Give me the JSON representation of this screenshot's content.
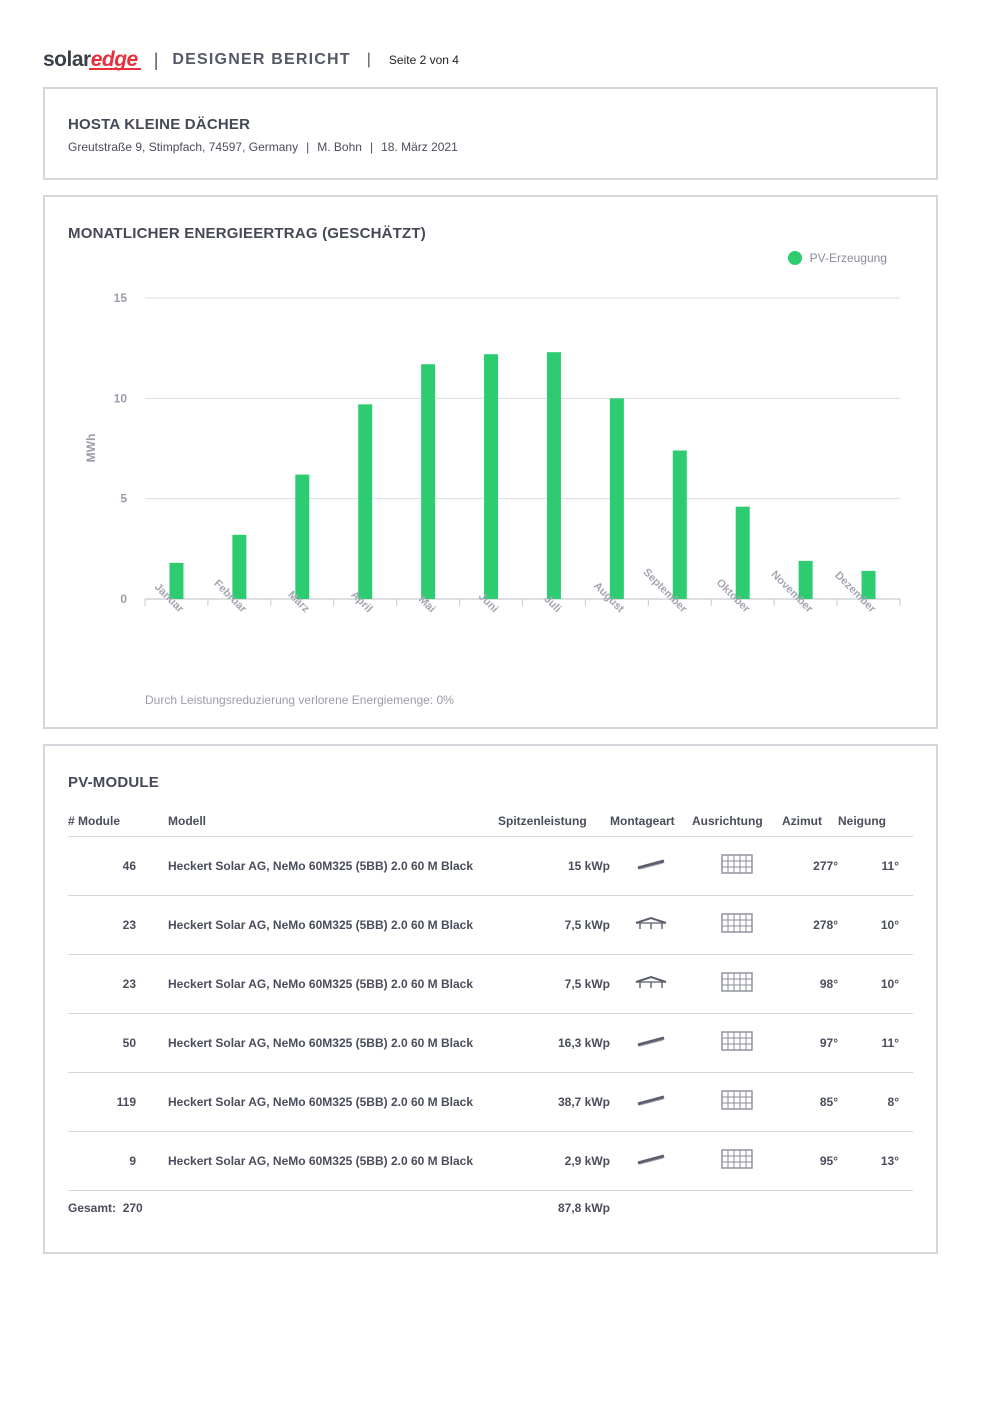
{
  "header": {
    "logo_solar": "solar",
    "logo_edge": "edge",
    "report_title": "DESIGNER BERICHT",
    "page_label": "Seite 2 von 4"
  },
  "project": {
    "title": "HOSTA KLEINE DÄCHER",
    "address": "Greutstraße 9, Stimpfach, 74597, Germany",
    "author": "M. Bohn",
    "date": "18. März 2021"
  },
  "energy": {
    "title": "MONATLICHER ENERGIEERTRAG (GESCHÄTZT)",
    "legend_label": "PV-Erzeugung",
    "loss_note": "Durch Leistungsreduzierung verlorene Energiemenge: 0%"
  },
  "chart_data": {
    "type": "bar",
    "categories": [
      "Januar",
      "Februar",
      "März",
      "April",
      "Mai",
      "Juni",
      "Juli",
      "August",
      "September",
      "Oktober",
      "November",
      "Dezember"
    ],
    "series": [
      {
        "name": "PV-Erzeugung",
        "values": [
          1.8,
          3.2,
          6.2,
          9.7,
          11.7,
          12.2,
          12.3,
          10.0,
          7.4,
          4.6,
          1.9,
          1.4
        ],
        "color": "#2ecc71"
      }
    ],
    "xlabel": "",
    "ylabel": "MWh",
    "yticks": [
      "0",
      "5",
      "10",
      "15"
    ],
    "ylim": [
      0,
      15
    ],
    "grid": true,
    "legend": "top-right"
  },
  "modules": {
    "title": "PV-MODULE",
    "columns": [
      "# Module",
      "Modell",
      "Spitzenleistung",
      "Montageart",
      "Ausrichtung",
      "Azimut",
      "Neigung"
    ],
    "rows": [
      {
        "count": "46",
        "model": "Heckert Solar AG, NeMo 60M325 (5BB) 2.0 60 M Black",
        "peak": "15 kWp",
        "mount": "flat-mount-icon",
        "orientation": "landscape-grid-icon",
        "azimuth": "277°",
        "tilt": "11°"
      },
      {
        "count": "23",
        "model": "Heckert Solar AG, NeMo 60M325 (5BB) 2.0 60 M Black",
        "peak": "7,5 kWp",
        "mount": "east-west-mount-icon",
        "orientation": "landscape-grid-icon",
        "azimuth": "278°",
        "tilt": "10°"
      },
      {
        "count": "23",
        "model": "Heckert Solar AG, NeMo 60M325 (5BB) 2.0 60 M Black",
        "peak": "7,5 kWp",
        "mount": "east-west-mount-icon",
        "orientation": "landscape-grid-icon",
        "azimuth": "98°",
        "tilt": "10°"
      },
      {
        "count": "50",
        "model": "Heckert Solar AG, NeMo 60M325 (5BB) 2.0 60 M Black",
        "peak": "16,3 kWp",
        "mount": "flat-mount-icon",
        "orientation": "landscape-grid-icon",
        "azimuth": "97°",
        "tilt": "11°"
      },
      {
        "count": "119",
        "model": "Heckert Solar AG, NeMo 60M325 (5BB) 2.0 60 M Black",
        "peak": "38,7 kWp",
        "mount": "flat-mount-icon",
        "orientation": "landscape-grid-icon",
        "azimuth": "85°",
        "tilt": "8°"
      },
      {
        "count": "9",
        "model": "Heckert Solar AG, NeMo 60M325 (5BB) 2.0 60 M Black",
        "peak": "2,9 kWp",
        "mount": "flat-mount-icon",
        "orientation": "landscape-grid-icon",
        "azimuth": "95°",
        "tilt": "13°"
      }
    ],
    "total_label": "Gesamt:",
    "total_count": "270",
    "total_peak": "87,8 kWp"
  }
}
